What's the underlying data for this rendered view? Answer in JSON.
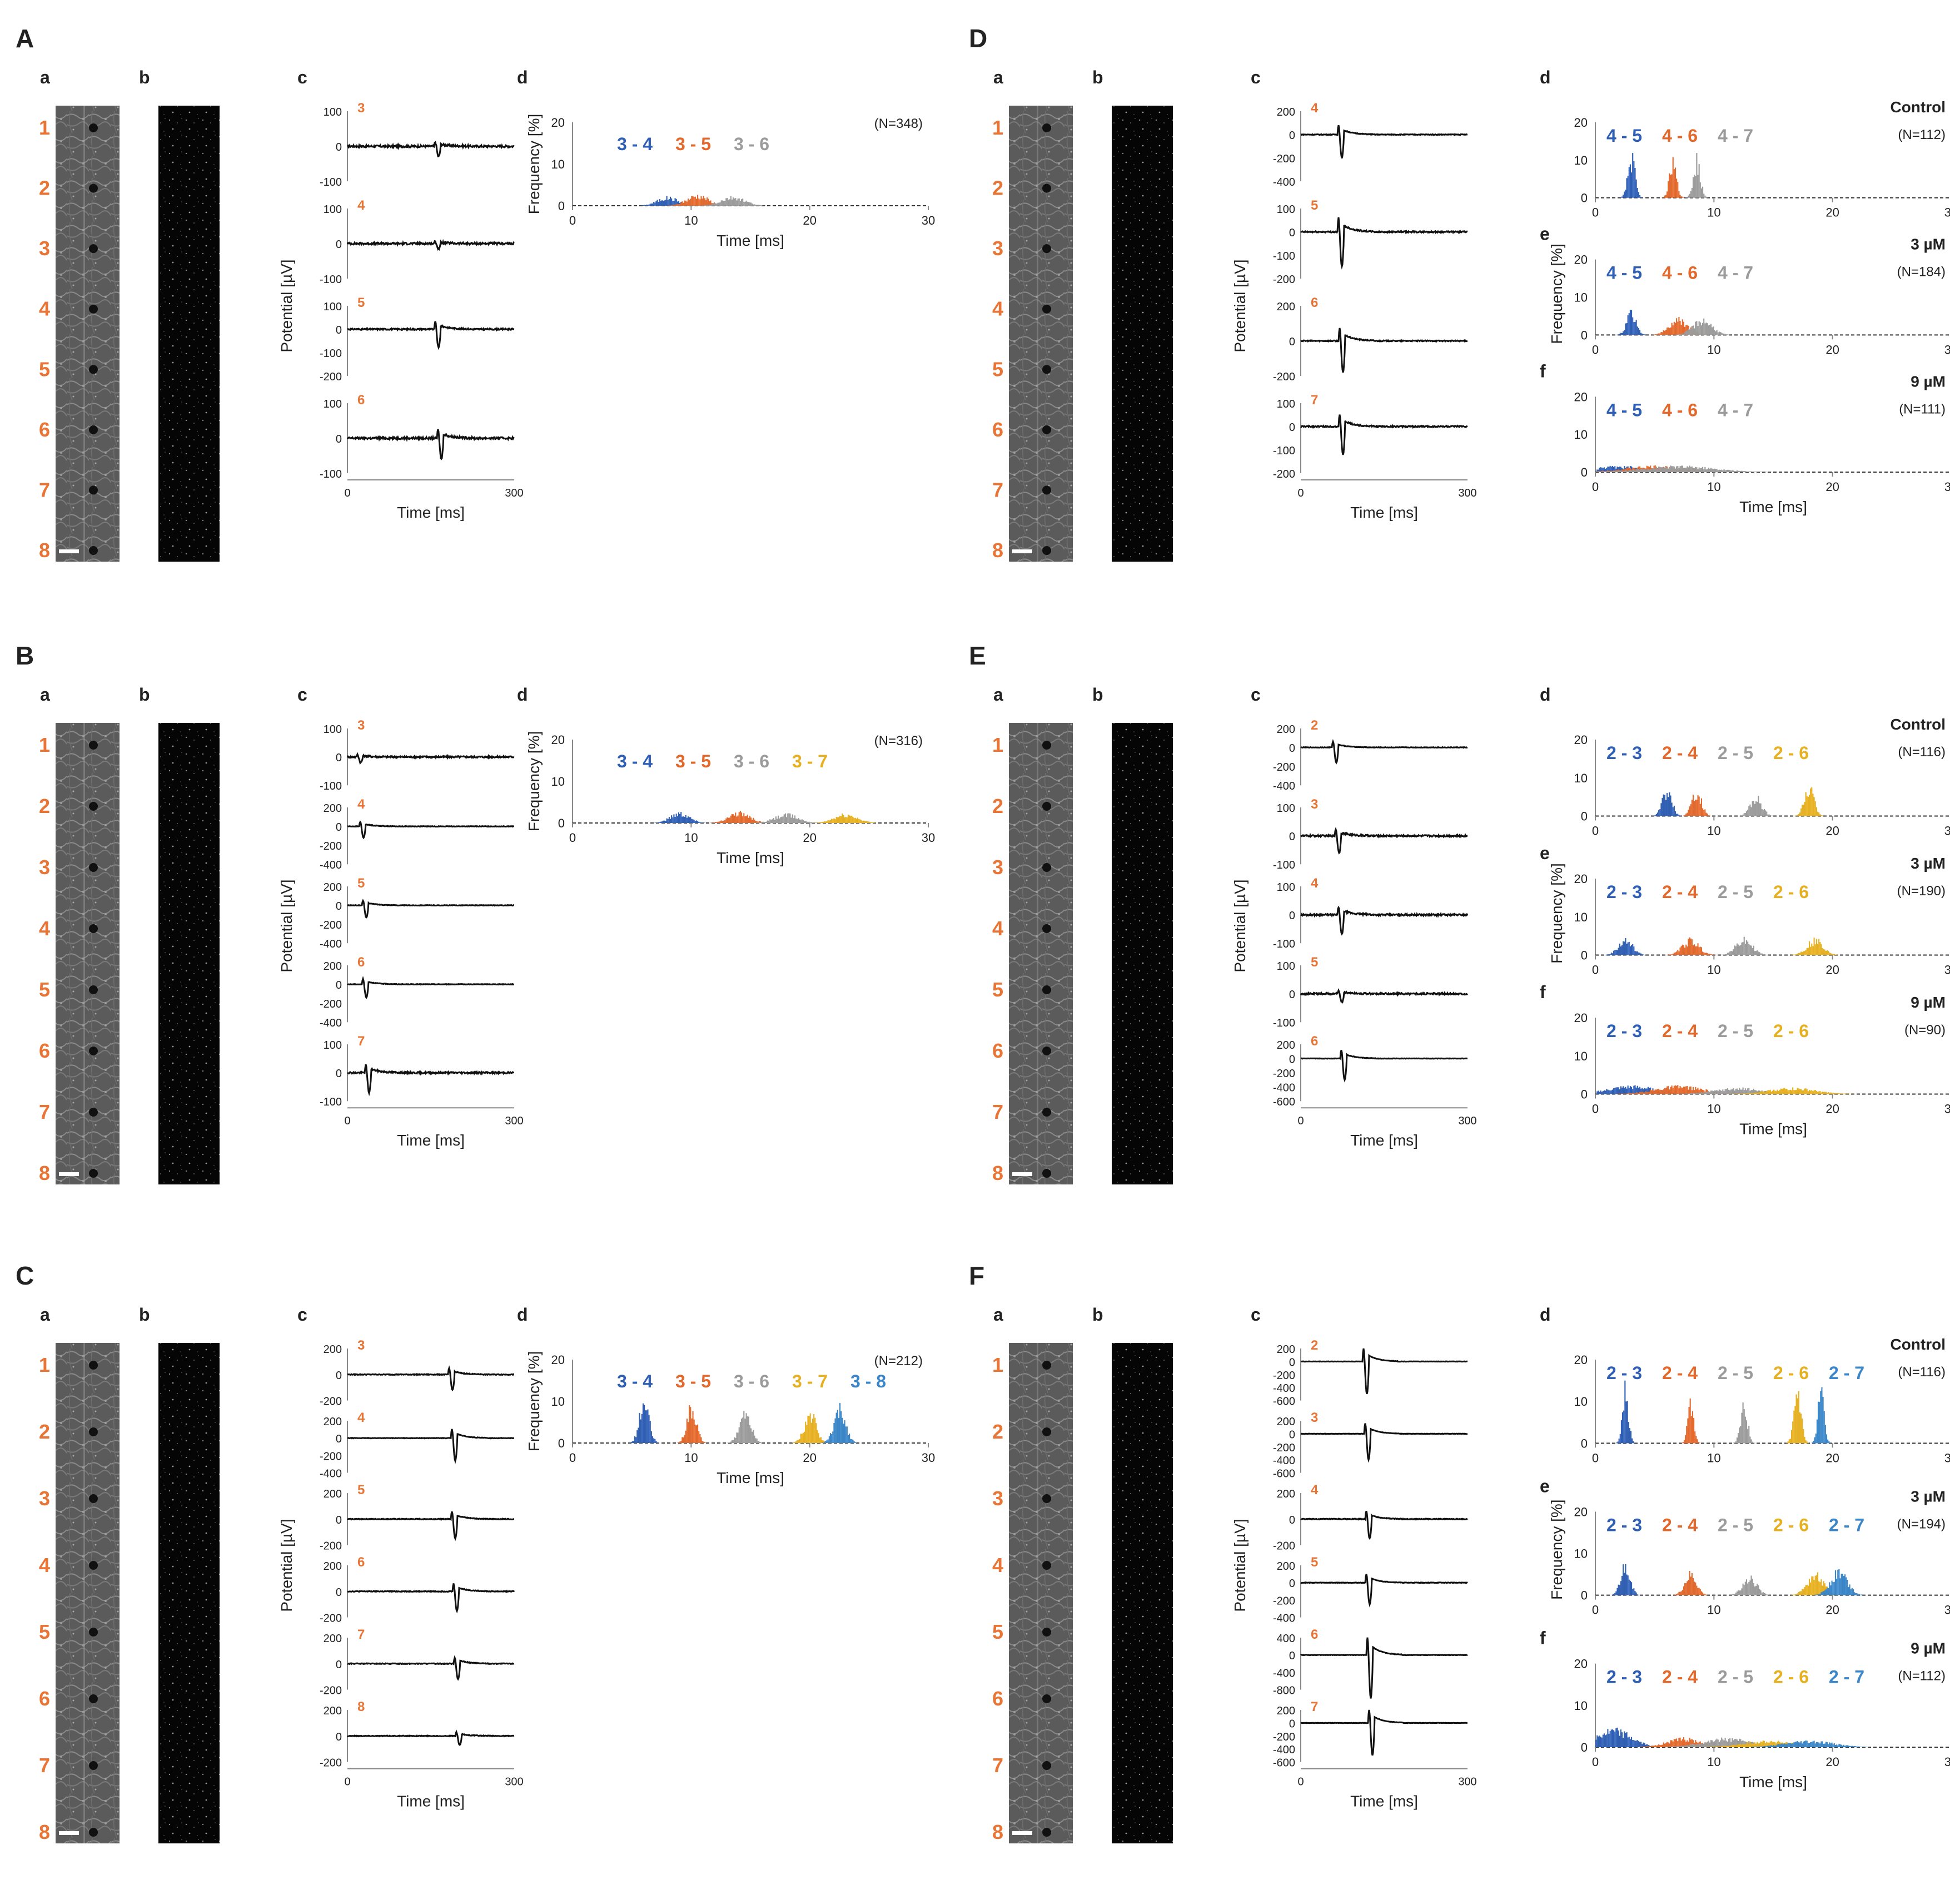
{
  "colors": {
    "electrode": "#e87535",
    "blue": "#2f5fb5",
    "orange": "#e2682b",
    "gray": "#9b9b9b",
    "yellow": "#e6b020",
    "lightblue": "#3a86c8",
    "trace": "#111111"
  },
  "common": {
    "sub_a": "a",
    "sub_b": "b",
    "sub_c": "c",
    "sub_d": "d",
    "sub_e": "e",
    "sub_f": "f",
    "potential_label": "Potential [µV]",
    "time_label": "Time [ms]",
    "freq_label": "Frequency [%]",
    "trace_ticks": [
      "0",
      "300"
    ],
    "hist_ticks": [
      "0",
      "10",
      "20",
      "30"
    ],
    "electrode_numbers": [
      "1",
      "2",
      "3",
      "4",
      "5",
      "6",
      "7",
      "8"
    ]
  },
  "panels": [
    {
      "letter": "A",
      "traces": [
        {
          "ch": "3",
          "yticks": [
            "100",
            "0",
            "-100"
          ],
          "spike_ms": 160,
          "amp": 30
        },
        {
          "ch": "4",
          "yticks": [
            "100",
            "0",
            "-100"
          ],
          "spike_ms": 160,
          "amp": 15
        },
        {
          "ch": "5",
          "yticks": [
            "100",
            "0",
            "-100",
            "-200"
          ],
          "spike_ms": 160,
          "amp": 80
        },
        {
          "ch": "6",
          "yticks": [
            "100",
            "0",
            "-100"
          ],
          "spike_ms": 165,
          "amp": 60
        }
      ],
      "hists": [
        {
          "label": "",
          "n": "(N=348)",
          "ylim": [
            0,
            20
          ],
          "yticks": [
            "20",
            "10",
            "0"
          ],
          "pairs": [
            {
              "label": "3 - 4",
              "color": "blue",
              "mean_ms": 8.0,
              "peak_pct": 2.0,
              "sd": 0.9
            },
            {
              "label": "3 - 5",
              "color": "orange",
              "mean_ms": 10.5,
              "peak_pct": 2.5,
              "sd": 0.9
            },
            {
              "label": "3 - 6",
              "color": "gray",
              "mean_ms": 13.5,
              "peak_pct": 2.0,
              "sd": 1.0
            }
          ]
        }
      ]
    },
    {
      "letter": "B",
      "traces": [
        {
          "ch": "3",
          "yticks": [
            "100",
            "0",
            "-100"
          ],
          "spike_ms": 20,
          "amp": 20
        },
        {
          "ch": "4",
          "yticks": [
            "200",
            "0",
            "-200",
            "-400"
          ],
          "spike_ms": 25,
          "amp": 120
        },
        {
          "ch": "5",
          "yticks": [
            "200",
            "0",
            "-200",
            "-400"
          ],
          "spike_ms": 30,
          "amp": 130
        },
        {
          "ch": "6",
          "yticks": [
            "200",
            "0",
            "-200",
            "-400"
          ],
          "spike_ms": 30,
          "amp": 140
        },
        {
          "ch": "7",
          "yticks": [
            "100",
            "0",
            "-100"
          ],
          "spike_ms": 35,
          "amp": 70
        }
      ],
      "hists": [
        {
          "label": "",
          "n": "(N=316)",
          "ylim": [
            0,
            20
          ],
          "yticks": [
            "20",
            "10",
            "0"
          ],
          "pairs": [
            {
              "label": "3 - 4",
              "color": "blue",
              "mean_ms": 9.0,
              "peak_pct": 2.5,
              "sd": 0.8
            },
            {
              "label": "3 - 5",
              "color": "orange",
              "mean_ms": 14.0,
              "peak_pct": 2.5,
              "sd": 0.9
            },
            {
              "label": "3 - 6",
              "color": "gray",
              "mean_ms": 18.0,
              "peak_pct": 2.0,
              "sd": 1.0
            },
            {
              "label": "3 - 7",
              "color": "yellow",
              "mean_ms": 23.0,
              "peak_pct": 2.0,
              "sd": 1.0
            }
          ]
        }
      ]
    },
    {
      "letter": "C",
      "traces": [
        {
          "ch": "3",
          "yticks": [
            "200",
            "0",
            "-200"
          ],
          "spike_ms": 185,
          "amp": 120
        },
        {
          "ch": "4",
          "yticks": [
            "200",
            "0",
            "-200",
            "-400"
          ],
          "spike_ms": 190,
          "amp": 260
        },
        {
          "ch": "5",
          "yticks": [
            "200",
            "0",
            "-200"
          ],
          "spike_ms": 190,
          "amp": 150
        },
        {
          "ch": "6",
          "yticks": [
            "200",
            "0",
            "-200"
          ],
          "spike_ms": 193,
          "amp": 150
        },
        {
          "ch": "7",
          "yticks": [
            "200",
            "0",
            "-200"
          ],
          "spike_ms": 195,
          "amp": 120
        },
        {
          "ch": "8",
          "yticks": [
            "200",
            "0",
            "-200"
          ],
          "spike_ms": 198,
          "amp": 70
        }
      ],
      "hists": [
        {
          "label": "",
          "n": "(N=212)",
          "ylim": [
            0,
            20
          ],
          "yticks": [
            "20",
            "10",
            "0"
          ],
          "pairs": [
            {
              "label": "3 - 4",
              "color": "blue",
              "mean_ms": 6.0,
              "peak_pct": 10.0,
              "sd": 0.4
            },
            {
              "label": "3 - 5",
              "color": "orange",
              "mean_ms": 10.0,
              "peak_pct": 9.0,
              "sd": 0.4
            },
            {
              "label": "3 - 6",
              "color": "gray",
              "mean_ms": 14.5,
              "peak_pct": 7.0,
              "sd": 0.5
            },
            {
              "label": "3 - 7",
              "color": "yellow",
              "mean_ms": 20.0,
              "peak_pct": 7.0,
              "sd": 0.5
            },
            {
              "label": "3 - 8",
              "color": "lightblue",
              "mean_ms": 22.5,
              "peak_pct": 8.0,
              "sd": 0.5
            }
          ]
        }
      ]
    },
    {
      "letter": "D",
      "traces": [
        {
          "ch": "4",
          "yticks": [
            "200",
            "0",
            "-200",
            "-400"
          ],
          "spike_ms": 70,
          "amp": 200
        },
        {
          "ch": "5",
          "yticks": [
            "100",
            "0",
            "-100",
            "-200"
          ],
          "spike_ms": 70,
          "amp": 150
        },
        {
          "ch": "6",
          "yticks": [
            "200",
            "0",
            "-200"
          ],
          "spike_ms": 72,
          "amp": 180
        },
        {
          "ch": "7",
          "yticks": [
            "100",
            "0",
            "-100",
            "-200"
          ],
          "spike_ms": 72,
          "amp": 120
        }
      ],
      "hists": [
        {
          "label": "Control",
          "n": "(N=112)",
          "ylim": [
            0,
            20
          ],
          "yticks": [
            "20",
            "10",
            "0"
          ],
          "pairs": [
            {
              "label": "4 - 5",
              "color": "blue",
              "mean_ms": 3.0,
              "peak_pct": 11.0,
              "sd": 0.3
            },
            {
              "label": "4 - 6",
              "color": "orange",
              "mean_ms": 6.5,
              "peak_pct": 9.0,
              "sd": 0.3
            },
            {
              "label": "4 - 7",
              "color": "gray",
              "mean_ms": 8.5,
              "peak_pct": 10.0,
              "sd": 0.3
            }
          ]
        },
        {
          "label": "3 µM",
          "n": "(N=184)",
          "ylim": [
            0,
            20
          ],
          "yticks": [
            "20",
            "10",
            "0"
          ],
          "pairs": [
            {
              "label": "4 - 5",
              "color": "blue",
              "mean_ms": 3.0,
              "peak_pct": 6.0,
              "sd": 0.4
            },
            {
              "label": "4 - 6",
              "color": "orange",
              "mean_ms": 7.0,
              "peak_pct": 4.0,
              "sd": 0.8
            },
            {
              "label": "4 - 7",
              "color": "gray",
              "mean_ms": 9.0,
              "peak_pct": 4.0,
              "sd": 0.8
            }
          ]
        },
        {
          "label": "9 µM",
          "n": "(N=111)",
          "ylim": [
            0,
            20
          ],
          "yticks": [
            "20",
            "10",
            "0"
          ],
          "pairs": [
            {
              "label": "4 - 5",
              "color": "blue",
              "mean_ms": 2.0,
              "peak_pct": 1.5,
              "sd": 2.0
            },
            {
              "label": "4 - 6",
              "color": "orange",
              "mean_ms": 5.0,
              "peak_pct": 1.5,
              "sd": 2.5
            },
            {
              "label": "4 - 7",
              "color": "gray",
              "mean_ms": 7.0,
              "peak_pct": 1.5,
              "sd": 3.0
            }
          ]
        }
      ]
    },
    {
      "letter": "E",
      "traces": [
        {
          "ch": "2",
          "yticks": [
            "200",
            "0",
            "-200",
            "-400"
          ],
          "spike_ms": 60,
          "amp": 160
        },
        {
          "ch": "3",
          "yticks": [
            "100",
            "0",
            "-100"
          ],
          "spike_ms": 65,
          "amp": 60
        },
        {
          "ch": "4",
          "yticks": [
            "100",
            "0",
            "-100"
          ],
          "spike_ms": 70,
          "amp": 70
        },
        {
          "ch": "5",
          "yticks": [
            "100",
            "0",
            "-100"
          ],
          "spike_ms": 70,
          "amp": 30
        },
        {
          "ch": "6",
          "yticks": [
            "200",
            "0",
            "-200",
            "-400",
            "-600"
          ],
          "spike_ms": 75,
          "amp": 300
        }
      ],
      "hists": [
        {
          "label": "Control",
          "n": "(N=116)",
          "ylim": [
            0,
            20
          ],
          "yticks": [
            "20",
            "10",
            "0"
          ],
          "pairs": [
            {
              "label": "2 - 3",
              "color": "blue",
              "mean_ms": 6.0,
              "peak_pct": 7.0,
              "sd": 0.4
            },
            {
              "label": "2 - 4",
              "color": "orange",
              "mean_ms": 8.5,
              "peak_pct": 7.0,
              "sd": 0.4
            },
            {
              "label": "2 - 5",
              "color": "gray",
              "mean_ms": 13.5,
              "peak_pct": 5.0,
              "sd": 0.5
            },
            {
              "label": "2 - 6",
              "color": "yellow",
              "mean_ms": 18.0,
              "peak_pct": 8.0,
              "sd": 0.4
            }
          ]
        },
        {
          "label": "3 µM",
          "n": "(N=190)",
          "ylim": [
            0,
            20
          ],
          "yticks": [
            "20",
            "10",
            "0"
          ],
          "pairs": [
            {
              "label": "2 - 3",
              "color": "blue",
              "mean_ms": 2.5,
              "peak_pct": 4.0,
              "sd": 0.6
            },
            {
              "label": "2 - 4",
              "color": "orange",
              "mean_ms": 8.0,
              "peak_pct": 4.0,
              "sd": 0.7
            },
            {
              "label": "2 - 5",
              "color": "gray",
              "mean_ms": 12.5,
              "peak_pct": 4.0,
              "sd": 0.7
            },
            {
              "label": "2 - 6",
              "color": "yellow",
              "mean_ms": 18.5,
              "peak_pct": 4.0,
              "sd": 0.7
            }
          ]
        },
        {
          "label": "9 µM",
          "n": "(N=90)",
          "ylim": [
            0,
            20
          ],
          "yticks": [
            "20",
            "10",
            "0"
          ],
          "pairs": [
            {
              "label": "2 - 3",
              "color": "blue",
              "mean_ms": 3.0,
              "peak_pct": 2.0,
              "sd": 2.0
            },
            {
              "label": "2 - 4",
              "color": "orange",
              "mean_ms": 7.0,
              "peak_pct": 2.0,
              "sd": 2.0
            },
            {
              "label": "2 - 5",
              "color": "gray",
              "mean_ms": 12.0,
              "peak_pct": 1.5,
              "sd": 2.0
            },
            {
              "label": "2 - 6",
              "color": "yellow",
              "mean_ms": 16.5,
              "peak_pct": 1.5,
              "sd": 2.0
            }
          ]
        }
      ]
    },
    {
      "letter": "F",
      "traces": [
        {
          "ch": "2",
          "yticks": [
            "200",
            "0",
            "-200",
            "-400",
            "-600"
          ],
          "spike_ms": 115,
          "amp": 500
        },
        {
          "ch": "3",
          "yticks": [
            "200",
            "0",
            "-200",
            "-400",
            "-600"
          ],
          "spike_ms": 118,
          "amp": 400
        },
        {
          "ch": "4",
          "yticks": [
            "200",
            "0",
            "-200"
          ],
          "spike_ms": 120,
          "amp": 150
        },
        {
          "ch": "5",
          "yticks": [
            "200",
            "0",
            "-200",
            "-400"
          ],
          "spike_ms": 120,
          "amp": 250
        },
        {
          "ch": "6",
          "yticks": [
            "400",
            "0",
            "-400",
            "-800"
          ],
          "spike_ms": 122,
          "amp": 500
        },
        {
          "ch": "7",
          "yticks": [
            "200",
            "0",
            "-200",
            "-400",
            "-600"
          ],
          "spike_ms": 125,
          "amp": 500
        }
      ],
      "hists": [
        {
          "label": "Control",
          "n": "(N=116)",
          "ylim": [
            0,
            20
          ],
          "yticks": [
            "20",
            "10",
            "0"
          ],
          "pairs": [
            {
              "label": "2 - 3",
              "color": "blue",
              "mean_ms": 2.5,
              "peak_pct": 13.0,
              "sd": 0.25
            },
            {
              "label": "2 - 4",
              "color": "orange",
              "mean_ms": 8.0,
              "peak_pct": 10.0,
              "sd": 0.25
            },
            {
              "label": "2 - 5",
              "color": "gray",
              "mean_ms": 12.5,
              "peak_pct": 9.0,
              "sd": 0.3
            },
            {
              "label": "2 - 6",
              "color": "yellow",
              "mean_ms": 17.0,
              "peak_pct": 12.0,
              "sd": 0.3
            },
            {
              "label": "2 - 7",
              "color": "lightblue",
              "mean_ms": 19.0,
              "peak_pct": 15.0,
              "sd": 0.25
            }
          ]
        },
        {
          "label": "3 µM",
          "n": "(N=194)",
          "ylim": [
            0,
            20
          ],
          "yticks": [
            "20",
            "10",
            "0"
          ],
          "pairs": [
            {
              "label": "2 - 3",
              "color": "blue",
              "mean_ms": 2.5,
              "peak_pct": 7.0,
              "sd": 0.4
            },
            {
              "label": "2 - 4",
              "color": "orange",
              "mean_ms": 8.0,
              "peak_pct": 5.0,
              "sd": 0.5
            },
            {
              "label": "2 - 5",
              "color": "gray",
              "mean_ms": 13.0,
              "peak_pct": 4.0,
              "sd": 0.6
            },
            {
              "label": "2 - 6",
              "color": "yellow",
              "mean_ms": 18.5,
              "peak_pct": 5.0,
              "sd": 0.7
            },
            {
              "label": "2 - 7",
              "color": "lightblue",
              "mean_ms": 20.5,
              "peak_pct": 6.0,
              "sd": 0.7
            }
          ]
        },
        {
          "label": "9 µM",
          "n": "(N=112)",
          "ylim": [
            0,
            20
          ],
          "yticks": [
            "20",
            "10",
            "0"
          ],
          "pairs": [
            {
              "label": "2 - 3",
              "color": "blue",
              "mean_ms": 1.5,
              "peak_pct": 4.0,
              "sd": 1.5
            },
            {
              "label": "2 - 4",
              "color": "orange",
              "mean_ms": 7.5,
              "peak_pct": 2.0,
              "sd": 1.5
            },
            {
              "label": "2 - 5",
              "color": "gray",
              "mean_ms": 11.0,
              "peak_pct": 2.0,
              "sd": 2.0
            },
            {
              "label": "2 - 6",
              "color": "yellow",
              "mean_ms": 14.5,
              "peak_pct": 1.5,
              "sd": 2.0
            },
            {
              "label": "2 - 7",
              "color": "lightblue",
              "mean_ms": 18.0,
              "peak_pct": 1.5,
              "sd": 2.0
            }
          ]
        }
      ]
    }
  ]
}
